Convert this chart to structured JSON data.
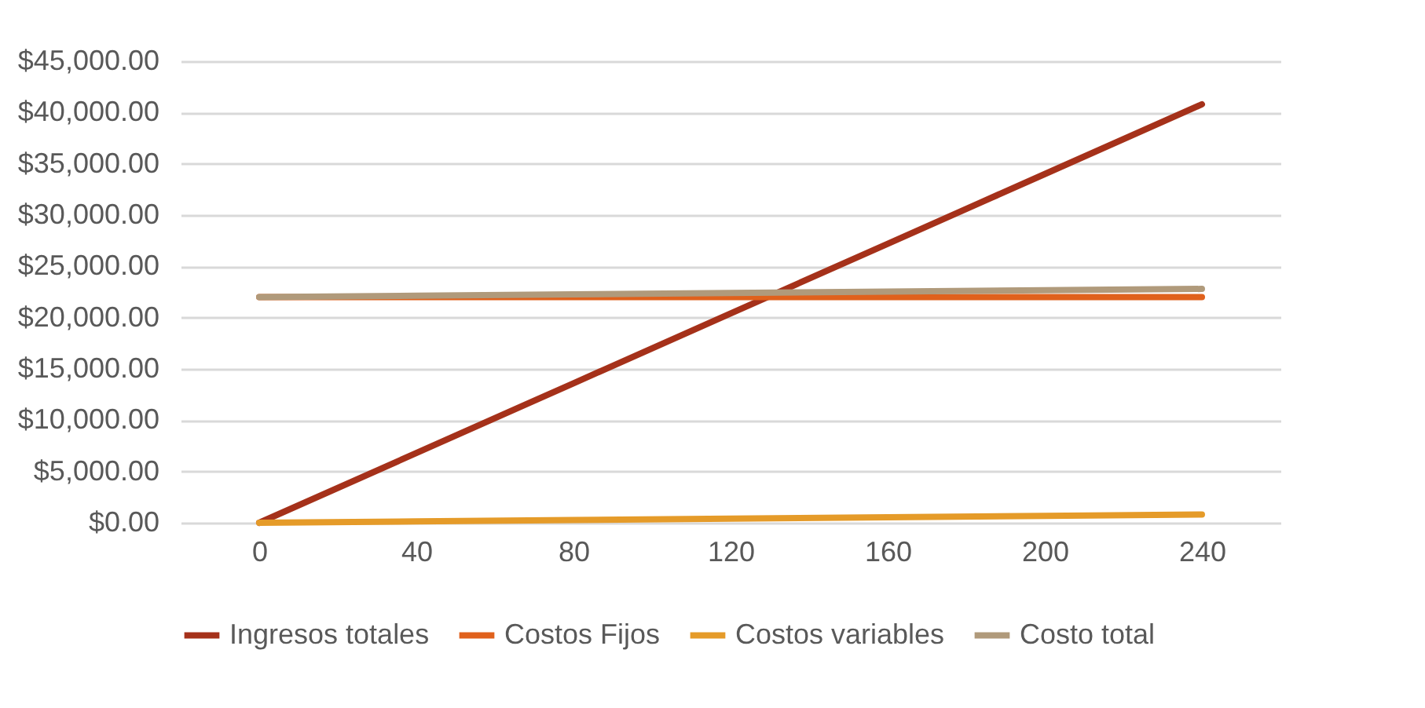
{
  "chart_data": {
    "type": "line",
    "categories": [
      "0",
      "40",
      "80",
      "120",
      "160",
      "200",
      "240"
    ],
    "series": [
      {
        "name": "Ingresos totales",
        "color": "#a5311a",
        "values": [
          0,
          6800,
          13600,
          20400,
          27200,
          34000,
          40800
        ]
      },
      {
        "name": "Costos Fijos",
        "color": "#e0611c",
        "values": [
          22000,
          22000,
          22000,
          22000,
          22000,
          22000,
          22000
        ]
      },
      {
        "name": "Costos variables",
        "color": "#e59b29",
        "values": [
          0,
          130,
          270,
          400,
          530,
          670,
          800
        ]
      },
      {
        "name": "Costo total",
        "color": "#b09a7b",
        "values": [
          22000,
          22130,
          22270,
          22400,
          22530,
          22670,
          22800
        ]
      }
    ],
    "ylim": [
      0,
      45000
    ],
    "yticks": [
      {
        "value": 0,
        "label": "$0.00"
      },
      {
        "value": 5000,
        "label": "$5,000.00"
      },
      {
        "value": 10000,
        "label": "$10,000.00"
      },
      {
        "value": 15000,
        "label": "$15,000.00"
      },
      {
        "value": 20000,
        "label": "$20,000.00"
      },
      {
        "value": 25000,
        "label": "$25,000.00"
      },
      {
        "value": 30000,
        "label": "$30,000.00"
      },
      {
        "value": 35000,
        "label": "$35,000.00"
      },
      {
        "value": 40000,
        "label": "$40,000.00"
      },
      {
        "value": 45000,
        "label": "$45,000.00"
      }
    ],
    "grid": "y",
    "legend": "bottom",
    "marker": "none",
    "line_style": "solid"
  }
}
